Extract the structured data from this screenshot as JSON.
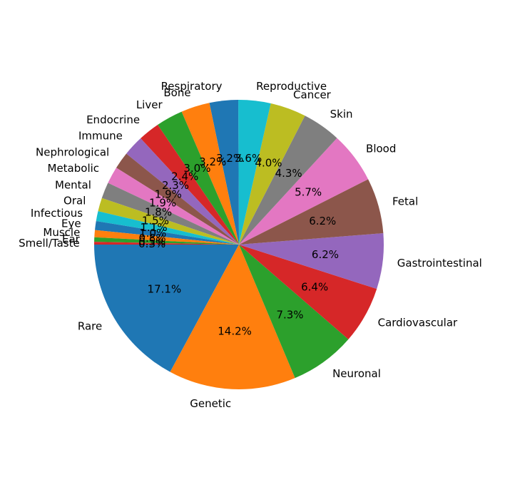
{
  "chart_data": {
    "type": "pie",
    "title": "",
    "start_angle_deg": 180,
    "direction": "counterclockwise",
    "slices": [
      {
        "label": "Rare",
        "value": 17.1,
        "pct_label": "17.1%",
        "color": "#1f77b4"
      },
      {
        "label": "Genetic",
        "value": 14.2,
        "pct_label": "14.2%",
        "color": "#ff7f0e"
      },
      {
        "label": "Neuronal",
        "value": 7.3,
        "pct_label": "7.3%",
        "color": "#2ca02c"
      },
      {
        "label": "Cardiovascular",
        "value": 6.4,
        "pct_label": "6.4%",
        "color": "#d62728"
      },
      {
        "label": "Gastrointestinal",
        "value": 6.2,
        "pct_label": "6.2%",
        "color": "#9467bd"
      },
      {
        "label": "Fetal",
        "value": 6.2,
        "pct_label": "6.2%",
        "color": "#8c564b"
      },
      {
        "label": "Blood",
        "value": 5.7,
        "pct_label": "5.7%",
        "color": "#e377c2"
      },
      {
        "label": "Skin",
        "value": 4.3,
        "pct_label": "4.3%",
        "color": "#7f7f7f"
      },
      {
        "label": "Cancer",
        "value": 4.0,
        "pct_label": "4.0%",
        "color": "#bcbd22"
      },
      {
        "label": "Reproductive",
        "value": 3.6,
        "pct_label": "3.6%",
        "color": "#17becf"
      },
      {
        "label": "Respiratory",
        "value": 3.2,
        "pct_label": "3.2%",
        "color": "#1f77b4"
      },
      {
        "label": "Bone",
        "value": 3.2,
        "pct_label": "3.2%",
        "color": "#ff7f0e"
      },
      {
        "label": "Liver",
        "value": 3.0,
        "pct_label": "3.0%",
        "color": "#2ca02c"
      },
      {
        "label": "Endocrine",
        "value": 2.4,
        "pct_label": "2.4%",
        "color": "#d62728"
      },
      {
        "label": "Immune",
        "value": 2.3,
        "pct_label": "2.3%",
        "color": "#9467bd"
      },
      {
        "label": "Nephrological",
        "value": 1.9,
        "pct_label": "1.9%",
        "color": "#8c564b"
      },
      {
        "label": "Metabolic",
        "value": 1.9,
        "pct_label": "1.9%",
        "color": "#e377c2"
      },
      {
        "label": "Mental",
        "value": 1.8,
        "pct_label": "1.8%",
        "color": "#7f7f7f"
      },
      {
        "label": "Oral",
        "value": 1.5,
        "pct_label": "1.5%",
        "color": "#bcbd22"
      },
      {
        "label": "Infectious",
        "value": 1.1,
        "pct_label": "1.1%",
        "color": "#17becf"
      },
      {
        "label": "Eye",
        "value": 1.0,
        "pct_label": "1.0%",
        "color": "#1f77b4"
      },
      {
        "label": "Muscle",
        "value": 0.8,
        "pct_label": "0.8%",
        "color": "#ff7f0e"
      },
      {
        "label": "Ear",
        "value": 0.5,
        "pct_label": "0.5%",
        "color": "#2ca02c"
      },
      {
        "label": "Smell/Taste",
        "value": 0.3,
        "pct_label": "0.3%",
        "color": "#d62728"
      }
    ]
  }
}
